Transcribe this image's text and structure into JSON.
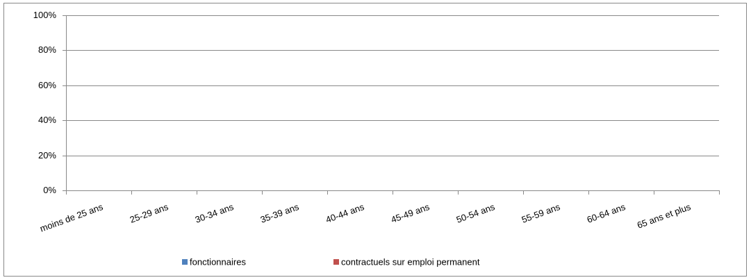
{
  "chart_data": {
    "type": "bar",
    "stacked": true,
    "categories": [
      "moins de 25 ans",
      "25-29 ans",
      "30-34 ans",
      "35-39 ans",
      "40-44 ans",
      "45-49 ans",
      "50-54 ans",
      "55-59 ans",
      "60-64 ans",
      "65 ans et plus"
    ],
    "series": [
      {
        "name": "fonctionnaires",
        "color": "#4f81bd",
        "values": [
          null,
          null,
          null,
          null,
          null,
          null,
          null,
          null,
          null,
          null
        ]
      },
      {
        "name": "contractuels sur emploi permanent",
        "color": "#c0504d",
        "values": [
          null,
          null,
          null,
          null,
          null,
          null,
          null,
          null,
          null,
          null
        ]
      }
    ],
    "ylim": [
      0,
      100
    ],
    "yticks": [
      {
        "value": 0,
        "label": "0%"
      },
      {
        "value": 20,
        "label": "20%"
      },
      {
        "value": 40,
        "label": "40%"
      },
      {
        "value": 60,
        "label": "60%"
      },
      {
        "value": 80,
        "label": "80%"
      },
      {
        "value": 100,
        "label": "100%"
      }
    ],
    "grid": true,
    "legend": "bottom"
  }
}
